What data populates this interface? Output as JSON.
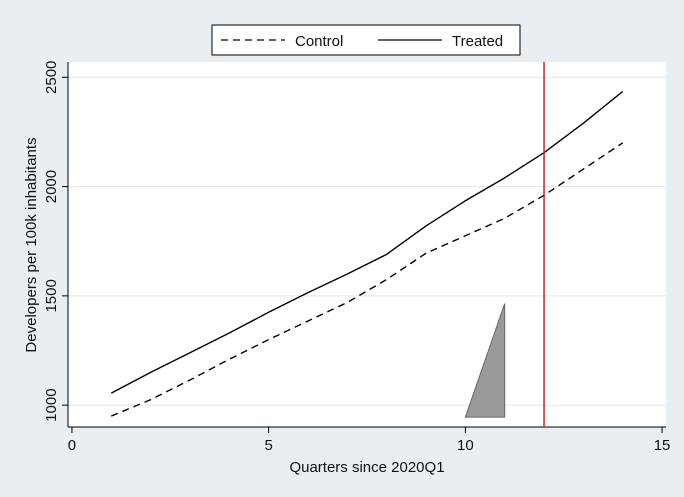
{
  "chart_data": {
    "type": "line",
    "title": "",
    "xlabel": "Quarters since 2020Q1",
    "ylabel": "Developers per 100k inhabitants",
    "xlim": [
      -0.1,
      15.1
    ],
    "ylim": [
      900,
      2570
    ],
    "xticks": [
      0,
      5,
      10,
      15
    ],
    "yticks": [
      1000,
      1500,
      2000,
      2500
    ],
    "grid": "horizontal",
    "legend_position": "top",
    "series": [
      {
        "name": "Control",
        "style": "dashed",
        "color": "#000000",
        "x": [
          1,
          2,
          3,
          4,
          5,
          6,
          7,
          8,
          9,
          10,
          11,
          12,
          13,
          14
        ],
        "y": [
          950,
          1025,
          1115,
          1210,
          1300,
          1385,
          1470,
          1575,
          1695,
          1775,
          1855,
          1960,
          2080,
          2200
        ]
      },
      {
        "name": "Treated",
        "style": "solid",
        "color": "#000000",
        "x": [
          1,
          2,
          3,
          4,
          5,
          6,
          7,
          8,
          9,
          10,
          11,
          12,
          13,
          14
        ],
        "y": [
          1055,
          1150,
          1240,
          1330,
          1425,
          1515,
          1600,
          1690,
          1820,
          1935,
          2040,
          2155,
          2290,
          2435
        ]
      }
    ],
    "vline": {
      "x": 12,
      "color": "#cc2222"
    },
    "triangle": {
      "x": [
        10,
        11,
        11
      ],
      "y": [
        945,
        945,
        1465
      ],
      "fill": "#999999"
    }
  }
}
